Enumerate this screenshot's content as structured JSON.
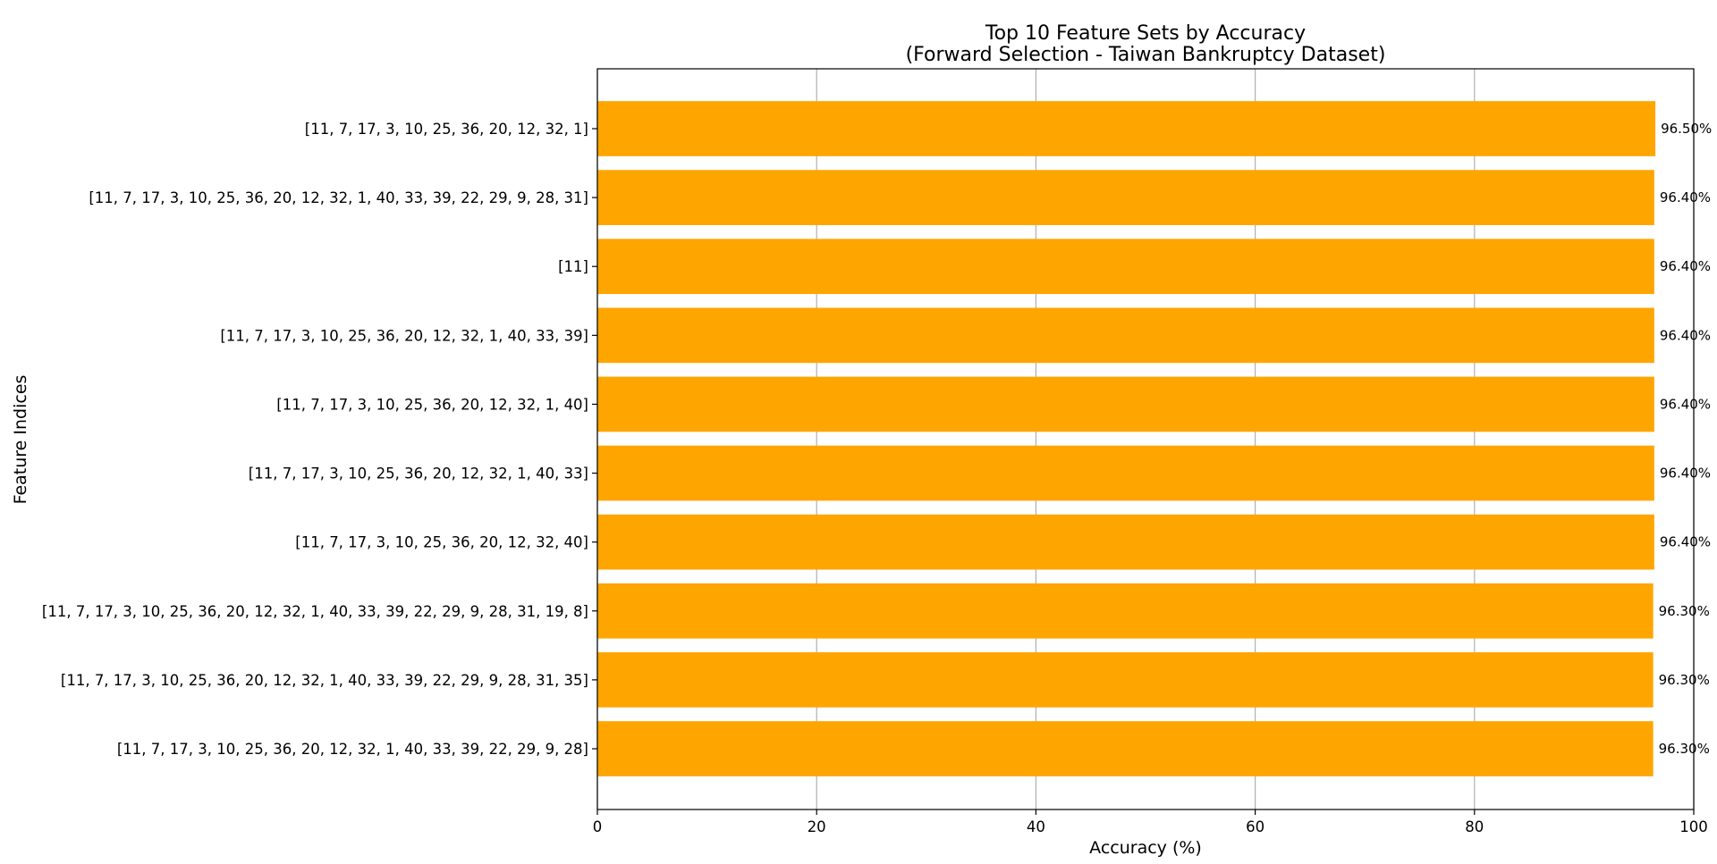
{
  "chart_data": {
    "type": "bar",
    "orientation": "horizontal",
    "title": "Top 10 Feature Sets by Accuracy",
    "subtitle": "(Forward Selection - Taiwan Bankruptcy Dataset)",
    "xlabel": "Accuracy (%)",
    "ylabel": "Feature Indices",
    "xlim": [
      0,
      100
    ],
    "xticks": [
      "0",
      "20",
      "40",
      "60",
      "80",
      "100"
    ],
    "grid": "x-axis vertical lines",
    "bar_color": "#ffa500",
    "categories": [
      "[11, 7, 17, 3, 10, 25, 36, 20, 12, 32, 1]",
      "[11, 7, 17, 3, 10, 25, 36, 20, 12, 32, 1, 40, 33, 39, 22, 29, 9, 28, 31]",
      "[11]",
      "[11, 7, 17, 3, 10, 25, 36, 20, 12, 32, 1, 40, 33, 39]",
      "[11, 7, 17, 3, 10, 25, 36, 20, 12, 32, 1, 40]",
      "[11, 7, 17, 3, 10, 25, 36, 20, 12, 32, 1, 40, 33]",
      "[11, 7, 17, 3, 10, 25, 36, 20, 12, 32, 40]",
      "[11, 7, 17, 3, 10, 25, 36, 20, 12, 32, 1, 40, 33, 39, 22, 29, 9, 28, 31, 19, 8]",
      "[11, 7, 17, 3, 10, 25, 36, 20, 12, 32, 1, 40, 33, 39, 22, 29, 9, 28, 31, 35]",
      "[11, 7, 17, 3, 10, 25, 36, 20, 12, 32, 1, 40, 33, 39, 22, 29, 9, 28]"
    ],
    "values": [
      96.5,
      96.4,
      96.4,
      96.4,
      96.4,
      96.4,
      96.4,
      96.3,
      96.3,
      96.3
    ],
    "value_labels": [
      "96.50%",
      "96.40%",
      "96.40%",
      "96.40%",
      "96.40%",
      "96.40%",
      "96.40%",
      "96.30%",
      "96.30%",
      "96.30%"
    ]
  }
}
